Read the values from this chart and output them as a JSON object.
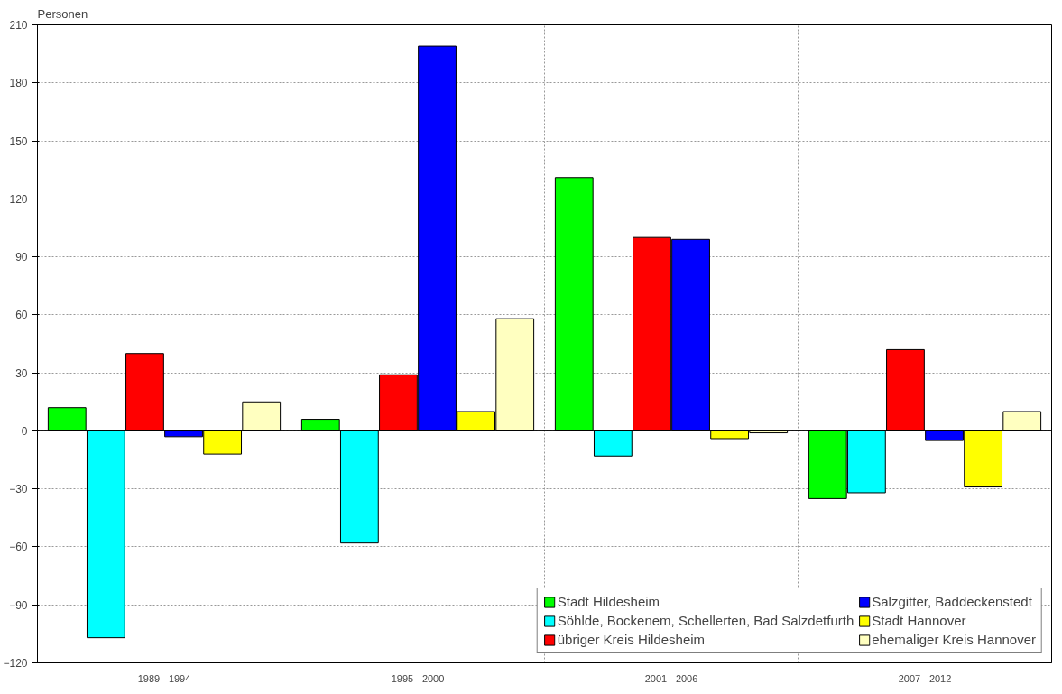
{
  "chart_data": {
    "type": "bar",
    "ylabel": "Personen",
    "categories": [
      "1989 - 1994",
      "1995 - 2000",
      "2001 - 2006",
      "2007 - 2012"
    ],
    "series": [
      {
        "name": "Stadt Hildesheim",
        "color": "#00ff00",
        "values": [
          12,
          6,
          131,
          -35
        ]
      },
      {
        "name": "Söhlde, Bockenem, Schellerten, Bad Salzdetfurth",
        "color": "#00ffff",
        "values": [
          -107,
          -58,
          -13,
          -32
        ]
      },
      {
        "name": "übriger Kreis Hildesheim",
        "color": "#ff0000",
        "values": [
          40,
          29,
          100,
          42
        ]
      },
      {
        "name": "Salzgitter, Baddeckenstedt",
        "color": "#0000ff",
        "values": [
          -3,
          199,
          99,
          -5
        ]
      },
      {
        "name": "Stadt Hannover",
        "color": "#ffff00",
        "values": [
          -12,
          10,
          -4,
          -29
        ]
      },
      {
        "name": "ehemaliger Kreis Hannover",
        "color": "#ffffc0",
        "values": [
          15,
          58,
          -1,
          10
        ]
      }
    ],
    "ylim": [
      -120,
      210
    ],
    "yticks": [
      -120,
      -90,
      -60,
      -30,
      0,
      30,
      60,
      90,
      120,
      150,
      180,
      210
    ],
    "grid": true,
    "legend": "bottom right"
  }
}
